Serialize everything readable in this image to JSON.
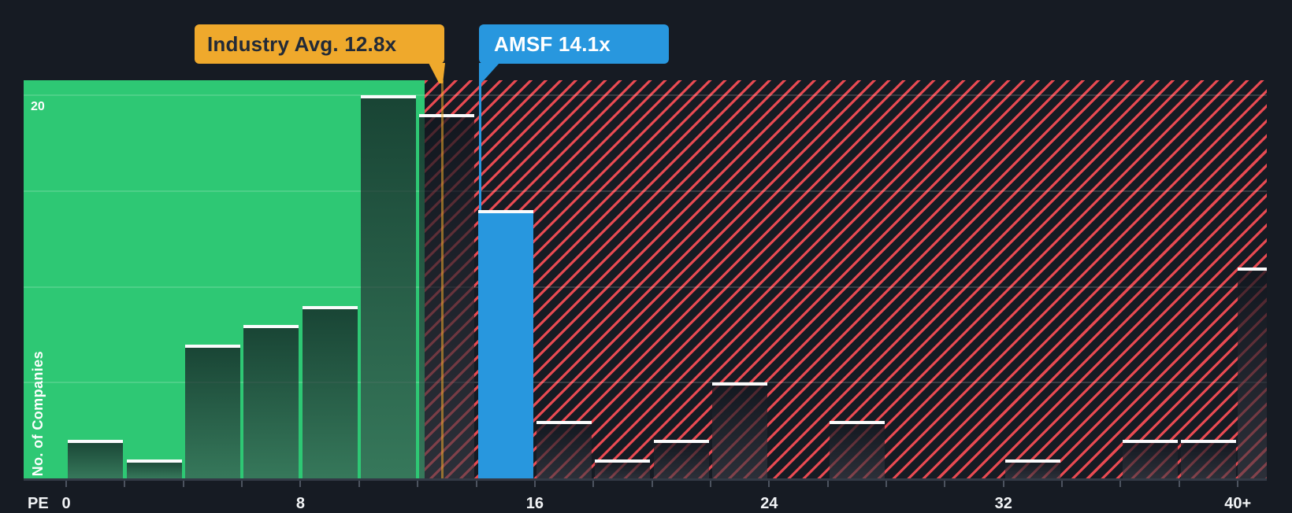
{
  "chart_data": {
    "type": "bar",
    "subtype": "histogram",
    "title": "",
    "xlabel": "PE",
    "ylabel": "No. of Companies",
    "x_tick_labels": [
      "0",
      "8",
      "16",
      "24",
      "32",
      "40+"
    ],
    "x_tick_values": [
      0,
      8,
      16,
      24,
      32,
      40
    ],
    "y_axis": {
      "shown_tick_label": "20",
      "gridline_values": [
        5,
        10,
        15,
        20
      ],
      "ylim": [
        0,
        20.8
      ],
      "grid": "on"
    },
    "bins": [
      {
        "label": "0-2",
        "start": 0,
        "end": 2,
        "count": 2
      },
      {
        "label": "2-4",
        "start": 2,
        "end": 4,
        "count": 1
      },
      {
        "label": "4-6",
        "start": 4,
        "end": 6,
        "count": 7
      },
      {
        "label": "6-8",
        "start": 6,
        "end": 8,
        "count": 8
      },
      {
        "label": "8-10",
        "start": 8,
        "end": 10,
        "count": 9
      },
      {
        "label": "10-12",
        "start": 10,
        "end": 12,
        "count": 20
      },
      {
        "label": "12-14",
        "start": 12,
        "end": 14,
        "count": 19
      },
      {
        "label": "14-16",
        "start": 14,
        "end": 16,
        "count": 14,
        "series": "company"
      },
      {
        "label": "16-18",
        "start": 16,
        "end": 18,
        "count": 3
      },
      {
        "label": "18-20",
        "start": 18,
        "end": 20,
        "count": 1
      },
      {
        "label": "20-22",
        "start": 20,
        "end": 22,
        "count": 2
      },
      {
        "label": "22-24",
        "start": 22,
        "end": 24,
        "count": 5
      },
      {
        "label": "24-26",
        "start": 24,
        "end": 26,
        "count": 0
      },
      {
        "label": "26-28",
        "start": 26,
        "end": 28,
        "count": 3
      },
      {
        "label": "28-30",
        "start": 28,
        "end": 30,
        "count": 0
      },
      {
        "label": "30-32",
        "start": 30,
        "end": 32,
        "count": 0
      },
      {
        "label": "32-34",
        "start": 32,
        "end": 34,
        "count": 1
      },
      {
        "label": "34-36",
        "start": 34,
        "end": 36,
        "count": 0
      },
      {
        "label": "36-38",
        "start": 36,
        "end": 38,
        "count": 2
      },
      {
        "label": "38-40",
        "start": 38,
        "end": 40,
        "count": 2
      },
      {
        "label": "40+",
        "start": 40,
        "end": 41,
        "count": 11,
        "open_ended": true
      }
    ],
    "annotations": [
      {
        "id": "industry",
        "label": "Industry Avg. 12.8x",
        "value": 12.8,
        "color": "#EFA92C"
      },
      {
        "id": "company",
        "label": "AMSF 14.1x",
        "value": 14.1,
        "color": "#2897DE"
      }
    ],
    "regions": [
      {
        "id": "below-industry-avg",
        "style": "solid",
        "color": "#2EC874"
      },
      {
        "id": "above-industry-avg",
        "style": "red-hatched",
        "color": "#E84A52"
      }
    ],
    "colors": {
      "background": "#161B23",
      "green_region": "#2EC874",
      "hatch_red": "#E84A52",
      "company_blue": "#2897DE",
      "industry_yellow": "#EFA92C",
      "bar_cap": "#FFFFFF"
    },
    "legend": null
  }
}
